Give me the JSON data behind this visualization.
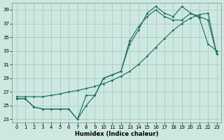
{
  "title": "",
  "xlabel": "Humidex (Indice chaleur)",
  "ylabel": "",
  "background_color": "#cce8e0",
  "grid_color": "#aaccc4",
  "line_color": "#1a6b5a",
  "xlim": [
    -0.5,
    23.5
  ],
  "ylim": [
    22.5,
    40.0
  ],
  "xticks": [
    0,
    1,
    2,
    3,
    4,
    5,
    6,
    7,
    8,
    9,
    10,
    11,
    12,
    13,
    14,
    15,
    16,
    17,
    18,
    19,
    20,
    21,
    22,
    23
  ],
  "yticks": [
    23,
    25,
    27,
    29,
    31,
    33,
    35,
    37,
    39
  ],
  "line1_x": [
    0,
    1,
    2,
    3,
    4,
    5,
    6,
    7,
    8,
    9,
    10,
    11,
    12,
    13,
    14,
    15,
    16,
    17,
    18,
    19,
    20,
    21,
    22,
    23
  ],
  "line1_y": [
    26.3,
    26.3,
    26.3,
    26.3,
    26.5,
    26.7,
    27.0,
    27.2,
    27.5,
    27.8,
    28.2,
    28.7,
    29.3,
    30.0,
    31.0,
    32.2,
    33.5,
    34.8,
    36.0,
    37.0,
    37.8,
    38.3,
    38.5,
    32.5
  ],
  "line2_x": [
    0,
    1,
    2,
    3,
    4,
    5,
    6,
    7,
    8,
    9,
    10,
    11,
    12,
    13,
    14,
    15,
    16,
    17,
    18,
    19,
    20,
    21,
    22,
    23
  ],
  "line2_y": [
    26.0,
    26.0,
    24.8,
    24.5,
    24.5,
    24.5,
    24.5,
    23.0,
    25.0,
    26.5,
    29.0,
    29.5,
    30.0,
    34.0,
    36.0,
    38.5,
    39.5,
    38.5,
    38.0,
    39.5,
    38.5,
    37.8,
    34.0,
    33.0
  ],
  "line3_x": [
    0,
    1,
    2,
    3,
    4,
    5,
    6,
    7,
    8,
    9,
    10,
    11,
    12,
    13,
    14,
    15,
    16,
    17,
    18,
    19,
    20,
    21,
    22,
    23
  ],
  "line3_y": [
    26.0,
    26.0,
    24.8,
    24.5,
    24.5,
    24.5,
    24.5,
    23.0,
    26.5,
    26.5,
    29.0,
    29.5,
    30.0,
    34.5,
    36.5,
    38.0,
    39.0,
    38.0,
    37.5,
    37.5,
    38.5,
    38.0,
    37.5,
    32.5
  ]
}
